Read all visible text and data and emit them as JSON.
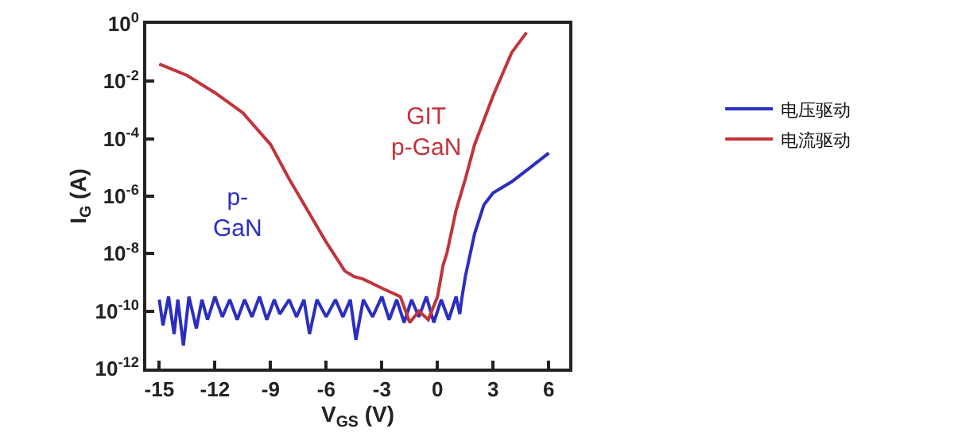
{
  "chart_data": {
    "type": "line",
    "xlabel": "V$_{GS}$ (V)",
    "ylabel": "I$_{G}$ (A)",
    "log": "y",
    "legend": "right",
    "grid": false,
    "xlim": [
      -15.7,
      7.1
    ],
    "xticks": [
      -15,
      -12,
      -9,
      -6,
      -3,
      0,
      3,
      6
    ],
    "ylim": [
      1e-12,
      1
    ],
    "yticks": [
      {
        "value": 1,
        "label": "10$^{0}$"
      },
      {
        "value": 0.01,
        "label": "10$^{-2}$"
      },
      {
        "value": 0.0001,
        "label": "10$^{-4}$"
      },
      {
        "value": 1e-06,
        "label": "10$^{-6}$"
      },
      {
        "value": 1e-08,
        "label": "10$^{-8}$"
      },
      {
        "value": 1e-10,
        "label": "10$^{-10}$"
      },
      {
        "value": 1e-12,
        "label": "10$^{-12}$"
      }
    ],
    "series": [
      {
        "name": "电压驱动",
        "color": "#2b2fc0",
        "x": [
          -15,
          -14.8,
          -14.5,
          -14.2,
          -14,
          -13.7,
          -13.4,
          -13,
          -12.7,
          -12.4,
          -12,
          -11.6,
          -11.2,
          -10.8,
          -10.4,
          -10,
          -9.6,
          -9.2,
          -8.8,
          -8.5,
          -8,
          -7.6,
          -7.2,
          -6.9,
          -6.5,
          -6,
          -5.5,
          -5.1,
          -4.7,
          -4.4,
          -4,
          -3.5,
          -3,
          -2.6,
          -2.2,
          -1.8,
          -1.4,
          -1,
          -0.6,
          -0.2,
          0.2,
          0.6,
          1,
          1.2,
          1.3,
          1.5,
          2,
          2.5,
          3,
          4,
          5,
          6
        ],
        "values": [
          2.5e-10,
          3.2e-11,
          3.2e-10,
          1.6e-11,
          2.5e-10,
          6.3e-12,
          3.2e-10,
          2.5e-11,
          2.5e-10,
          5e-11,
          3.2e-10,
          6.3e-11,
          2.5e-10,
          5e-11,
          2.5e-10,
          6.3e-11,
          3.2e-10,
          5e-11,
          2.5e-10,
          7.9e-11,
          2.5e-10,
          6.3e-11,
          2.5e-10,
          1.6e-11,
          2.5e-10,
          6.3e-11,
          2.5e-10,
          6.3e-11,
          2.5e-10,
          1e-11,
          2.5e-10,
          6.3e-11,
          3.2e-10,
          5e-11,
          2.5e-10,
          4e-11,
          2.5e-10,
          6.3e-11,
          3.2e-10,
          4e-11,
          2.5e-10,
          5e-11,
          3.2e-10,
          7.9e-11,
          2.5e-10,
          1.6e-09,
          5e-08,
          5e-07,
          1.3e-06,
          3.2e-06,
          1e-05,
          3.2e-05
        ]
      },
      {
        "name": "电流驱动",
        "color": "#c0343a",
        "x": [
          -15,
          -13.5,
          -12,
          -10.5,
          -9,
          -8,
          -7,
          -6,
          -5,
          -4.5,
          -4,
          -3,
          -2,
          -1.5,
          -1,
          -0.5,
          0,
          0.3,
          0.5,
          1,
          1.5,
          2,
          3,
          4,
          4.8
        ],
        "values": [
          0.04,
          0.016,
          0.004,
          0.0008,
          6.3e-05,
          4e-06,
          3.2e-07,
          2.5e-08,
          2.5e-09,
          1.6e-09,
          1.3e-09,
          6.3e-10,
          3.2e-10,
          4e-11,
          1e-10,
          5e-11,
          3.2e-10,
          4e-09,
          1e-08,
          3.2e-07,
          4e-06,
          6.3e-05,
          0.0032,
          0.1,
          0.5
        ]
      }
    ],
    "annotations": [
      "GIT\np-GaN",
      "p-\nGaN"
    ]
  }
}
